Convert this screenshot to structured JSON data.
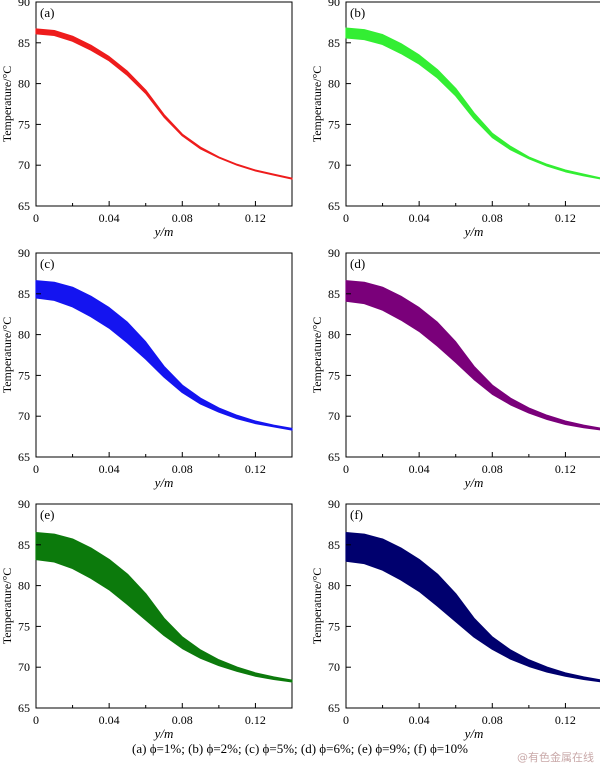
{
  "figure_caption": "(a) ϕ=1%; (b) ϕ=2%; (c) ϕ=5%; (d) ϕ=6%; (e) ϕ=9%; (f) ϕ=10%",
  "watermark": "@有色金属在线",
  "chart_data": [
    {
      "type": "area",
      "panel_label": "(a)",
      "xlabel": "y/m",
      "ylabel": "Temperature/°C",
      "xlim": [
        0,
        0.14
      ],
      "ylim": [
        65,
        90
      ],
      "xticks": [
        "0",
        "0.04",
        "0.08",
        "0.12"
      ],
      "yticks": [
        "65",
        "70",
        "75",
        "80",
        "85",
        "90"
      ],
      "color": "#ee1c1c",
      "x": [
        0,
        0.01,
        0.02,
        0.03,
        0.04,
        0.05,
        0.06,
        0.07,
        0.08,
        0.09,
        0.1,
        0.11,
        0.12,
        0.13,
        0.14
      ],
      "upper": [
        86.7,
        86.5,
        85.8,
        84.7,
        83.3,
        81.5,
        79.2,
        76.2,
        73.8,
        72.2,
        71.0,
        70.1,
        69.4,
        68.9,
        68.4
      ],
      "lower": [
        86.1,
        85.9,
        85.2,
        84.1,
        82.8,
        81.0,
        78.8,
        75.9,
        73.6,
        72.0,
        70.9,
        70.0,
        69.3,
        68.8,
        68.3
      ]
    },
    {
      "type": "area",
      "panel_label": "(b)",
      "xlabel": "y/m",
      "ylabel": "Temperature/°C",
      "xlim": [
        0,
        0.14
      ],
      "ylim": [
        65,
        90
      ],
      "xticks": [
        "0",
        "0.04",
        "0.08",
        "0.12"
      ],
      "yticks": [
        "65",
        "70",
        "75",
        "80",
        "85",
        "90"
      ],
      "color": "#33ee33",
      "x": [
        0,
        0.01,
        0.02,
        0.03,
        0.04,
        0.05,
        0.06,
        0.07,
        0.08,
        0.09,
        0.1,
        0.11,
        0.12,
        0.13,
        0.14
      ],
      "upper": [
        86.8,
        86.6,
        86.0,
        84.9,
        83.5,
        81.7,
        79.4,
        76.4,
        73.9,
        72.3,
        71.0,
        70.1,
        69.4,
        68.9,
        68.4
      ],
      "lower": [
        85.6,
        85.4,
        84.8,
        83.7,
        82.4,
        80.7,
        78.5,
        75.7,
        73.4,
        71.9,
        70.8,
        69.9,
        69.2,
        68.7,
        68.3
      ]
    },
    {
      "type": "area",
      "panel_label": "(c)",
      "xlabel": "y/m",
      "ylabel": "Temperature/°C",
      "xlim": [
        0,
        0.14
      ],
      "ylim": [
        65,
        90
      ],
      "xticks": [
        "0",
        "0.04",
        "0.08",
        "0.12"
      ],
      "yticks": [
        "65",
        "70",
        "75",
        "80",
        "85",
        "90"
      ],
      "color": "#1414f0",
      "x": [
        0,
        0.01,
        0.02,
        0.03,
        0.04,
        0.05,
        0.06,
        0.07,
        0.08,
        0.09,
        0.1,
        0.11,
        0.12,
        0.13,
        0.14
      ],
      "upper": [
        86.6,
        86.4,
        85.8,
        84.7,
        83.3,
        81.5,
        79.1,
        76.1,
        73.8,
        72.2,
        71.0,
        70.1,
        69.4,
        68.9,
        68.5
      ],
      "lower": [
        84.5,
        84.2,
        83.4,
        82.2,
        80.8,
        79.0,
        77.0,
        74.8,
        72.9,
        71.5,
        70.5,
        69.7,
        69.1,
        68.7,
        68.3
      ]
    },
    {
      "type": "area",
      "panel_label": "(d)",
      "xlabel": "y/m",
      "ylabel": "Temperature/°C",
      "xlim": [
        0,
        0.14
      ],
      "ylim": [
        65,
        90
      ],
      "xticks": [
        "0",
        "0.04",
        "0.08",
        "0.12"
      ],
      "yticks": [
        "65",
        "70",
        "75",
        "80",
        "85",
        "90"
      ],
      "color": "#7a007a",
      "x": [
        0,
        0.01,
        0.02,
        0.03,
        0.04,
        0.05,
        0.06,
        0.07,
        0.08,
        0.09,
        0.1,
        0.11,
        0.12,
        0.13,
        0.14
      ],
      "upper": [
        86.6,
        86.4,
        85.8,
        84.7,
        83.3,
        81.5,
        79.1,
        76.1,
        73.8,
        72.2,
        71.0,
        70.1,
        69.4,
        68.9,
        68.5
      ],
      "lower": [
        84.1,
        83.8,
        83.0,
        81.8,
        80.4,
        78.6,
        76.6,
        74.5,
        72.7,
        71.4,
        70.4,
        69.6,
        69.0,
        68.6,
        68.3
      ]
    },
    {
      "type": "area",
      "panel_label": "(e)",
      "xlabel": "y/m",
      "ylabel": "Temperature/°C",
      "xlim": [
        0,
        0.14
      ],
      "ylim": [
        65,
        90
      ],
      "xticks": [
        "0",
        "0.04",
        "0.08",
        "0.12"
      ],
      "yticks": [
        "65",
        "70",
        "75",
        "80",
        "85",
        "90"
      ],
      "color": "#0c7a0c",
      "x": [
        0,
        0.01,
        0.02,
        0.03,
        0.04,
        0.05,
        0.06,
        0.07,
        0.08,
        0.09,
        0.1,
        0.11,
        0.12,
        0.13,
        0.14
      ],
      "upper": [
        86.5,
        86.3,
        85.7,
        84.6,
        83.2,
        81.4,
        79.0,
        76.0,
        73.7,
        72.1,
        70.9,
        70.0,
        69.3,
        68.8,
        68.4
      ],
      "lower": [
        83.2,
        82.9,
        82.1,
        80.9,
        79.5,
        77.7,
        75.8,
        73.9,
        72.3,
        71.1,
        70.2,
        69.5,
        68.9,
        68.5,
        68.2
      ]
    },
    {
      "type": "area",
      "panel_label": "(f)",
      "xlabel": "y/m",
      "ylabel": "Temperature/°C",
      "xlim": [
        0,
        0.14
      ],
      "ylim": [
        65,
        90
      ],
      "xticks": [
        "0",
        "0.04",
        "0.08",
        "0.12"
      ],
      "yticks": [
        "65",
        "70",
        "75",
        "80",
        "85",
        "90"
      ],
      "color": "#00006e",
      "x": [
        0,
        0.01,
        0.02,
        0.03,
        0.04,
        0.05,
        0.06,
        0.07,
        0.08,
        0.09,
        0.1,
        0.11,
        0.12,
        0.13,
        0.14
      ],
      "upper": [
        86.5,
        86.3,
        85.7,
        84.6,
        83.2,
        81.4,
        79.0,
        76.0,
        73.7,
        72.1,
        70.9,
        70.0,
        69.3,
        68.8,
        68.4
      ],
      "lower": [
        83.0,
        82.7,
        81.9,
        80.7,
        79.3,
        77.5,
        75.6,
        73.7,
        72.2,
        71.0,
        70.1,
        69.4,
        68.9,
        68.5,
        68.2
      ]
    }
  ]
}
